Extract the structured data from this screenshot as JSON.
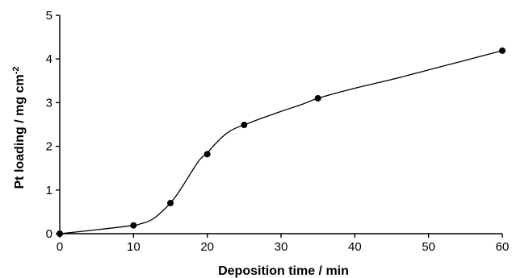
{
  "chart_data": {
    "type": "line",
    "title": "",
    "xlabel": "Deposition  time / min",
    "ylabel_main": "Pt loading / mg cm",
    "ylabel_sup": "-2",
    "xlim": [
      0,
      60
    ],
    "ylim": [
      0,
      5
    ],
    "x_ticks": [
      0,
      10,
      20,
      30,
      40,
      50,
      60
    ],
    "y_ticks": [
      0,
      1,
      2,
      3,
      4,
      5
    ],
    "grid": false,
    "legend": "none",
    "series": [
      {
        "markers": "filled-circle",
        "x": [
          0,
          10,
          15,
          20,
          25,
          35,
          60
        ],
        "y": [
          0,
          0.19,
          0.7,
          1.82,
          2.49,
          3.1,
          4.19
        ]
      }
    ],
    "curve": {
      "x": [
        0,
        5,
        10,
        11,
        12,
        13,
        14,
        15,
        16,
        17,
        18,
        19,
        20,
        21,
        22,
        23,
        24,
        25,
        27,
        30,
        33,
        35,
        40,
        45,
        50,
        55,
        60
      ],
      "y": [
        0,
        0.09,
        0.19,
        0.23,
        0.28,
        0.38,
        0.53,
        0.7,
        0.92,
        1.18,
        1.45,
        1.7,
        1.85,
        2.04,
        2.21,
        2.34,
        2.43,
        2.49,
        2.62,
        2.8,
        2.97,
        3.1,
        3.33,
        3.53,
        3.75,
        3.97,
        4.19
      ]
    }
  }
}
